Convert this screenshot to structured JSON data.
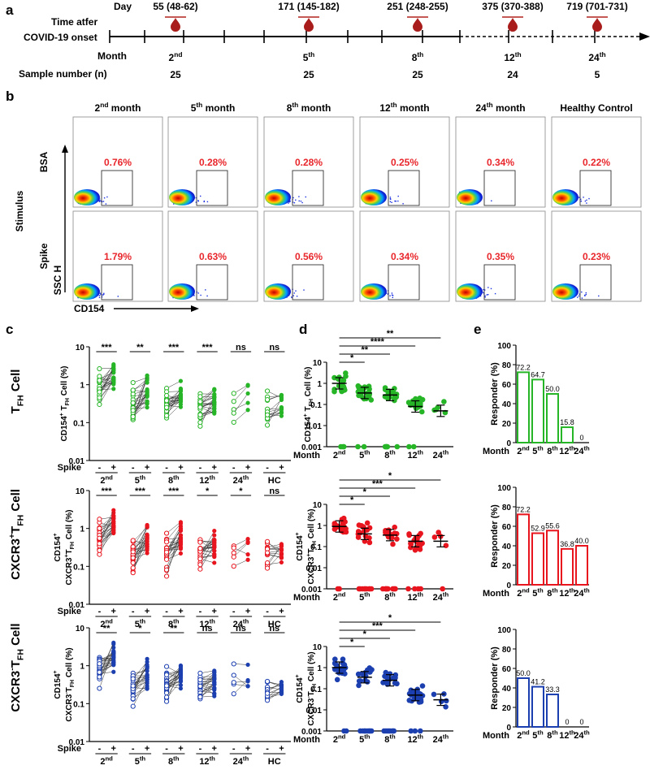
{
  "panel_labels": {
    "a": "a",
    "b": "b",
    "c": "c",
    "d": "d",
    "e": "e"
  },
  "timeline": {
    "day_label": "Day",
    "onset_label_1": "Time atfer",
    "onset_label_2": "COVID-19 onset",
    "month_label": "Month",
    "sample_label": "Sample number (n)",
    "timepoints": [
      {
        "day": "55 (48-62)",
        "month_num": "2",
        "month_sup": "nd",
        "n": "25"
      },
      {
        "day": "171 (145-182)",
        "month_num": "5",
        "month_sup": "th",
        "n": "25"
      },
      {
        "day": "251 (248-255)",
        "month_num": "8",
        "month_sup": "th",
        "n": "25"
      },
      {
        "day": "375 (370-388)",
        "month_num": "12",
        "month_sup": "th",
        "n": "24"
      },
      {
        "day": "719 (701-731)",
        "month_num": "24",
        "month_sup": "th",
        "n": "5"
      }
    ]
  },
  "flow": {
    "stimulus_label": "Stimulus",
    "row_labels": [
      "BSA",
      "Spike"
    ],
    "y_axis": "SSC H",
    "x_axis": "CD154",
    "columns": [
      {
        "num": "2",
        "sup": "nd",
        "text": " month"
      },
      {
        "num": "5",
        "sup": "th",
        "text": " month"
      },
      {
        "num": "8",
        "sup": "th",
        "text": " month"
      },
      {
        "num": "12",
        "sup": "th",
        "text": " month"
      },
      {
        "num": "24",
        "sup": "th",
        "text": " month"
      },
      {
        "num": "",
        "sup": "",
        "text": "Healthy Control"
      }
    ],
    "percentages": [
      [
        "0.76%",
        "0.28%",
        "0.28%",
        "0.25%",
        "0.34%",
        "0.22%"
      ],
      [
        "1.79%",
        "0.63%",
        "0.56%",
        "0.34%",
        "0.35%",
        "0.23%"
      ]
    ],
    "pct_color": "#e8262b"
  },
  "row_titles": [
    {
      "pre": "T",
      "sub": "FH",
      "sup": "",
      "post": " Cell"
    },
    {
      "pre": "CXCR3",
      "sub": "FH",
      "sup": "+",
      "post": " Cell"
    },
    {
      "pre": "CXCR3",
      "sub": "FH",
      "sup": "-",
      "post": " Cell"
    }
  ],
  "colors": {
    "green": "#26b526",
    "red": "#e8141e",
    "blue": "#1c3fb0"
  },
  "chart_data": [
    {
      "type": "scatter",
      "panel": "c",
      "population": "TFH",
      "ylabel": "CD154+ TFH Cell (%)",
      "ylim": [
        0.01,
        10
      ],
      "yscale": "log",
      "yticks": [
        "0.01",
        "0.1",
        "1",
        "10"
      ],
      "groups": [
        "2nd",
        "5th",
        "8th",
        "12th",
        "24th",
        "HC"
      ],
      "stim_labels": [
        "-",
        "+"
      ],
      "stim_axis": "Spike",
      "significance": [
        "***",
        "**",
        "***",
        "***",
        "ns",
        "ns"
      ],
      "medians_bsa": [
        0.75,
        0.28,
        0.28,
        0.22,
        0.34,
        0.22
      ],
      "medians_spike": [
        1.6,
        0.55,
        0.5,
        0.32,
        0.35,
        0.23
      ]
    },
    {
      "type": "scatter",
      "panel": "c",
      "population": "CXCR3+ TFH",
      "ylabel": "CD154+ CXCR3+ TFH Cell (%)",
      "ylim": [
        0.01,
        10
      ],
      "yscale": "log",
      "yticks": [
        "0.01",
        "0.1",
        "1",
        "10"
      ],
      "groups": [
        "2nd",
        "5th",
        "8th",
        "12th",
        "24th",
        "HC"
      ],
      "stim_labels": [
        "-",
        "+"
      ],
      "stim_axis": "Spike",
      "significance": [
        "***",
        "***",
        "***",
        "*",
        "*",
        "ns"
      ],
      "medians_bsa": [
        0.6,
        0.2,
        0.25,
        0.2,
        0.2,
        0.18
      ],
      "medians_spike": [
        1.2,
        0.45,
        0.55,
        0.3,
        0.35,
        0.2
      ]
    },
    {
      "type": "scatter",
      "panel": "c",
      "population": "CXCR3- TFH",
      "ylabel": "CD154+ CXCR3- TFH Cell (%)",
      "ylim": [
        0.01,
        10
      ],
      "yscale": "log",
      "yticks": [
        "0.01",
        "0.1",
        "1",
        "10"
      ],
      "groups": [
        "2nd",
        "5th",
        "8th",
        "12th",
        "24th",
        "HC"
      ],
      "stim_labels": [
        "-",
        "+"
      ],
      "stim_axis": "Spike",
      "significance": [
        "**",
        "*",
        "**",
        "ns",
        "ns",
        "ns"
      ],
      "medians_bsa": [
        0.8,
        0.3,
        0.3,
        0.28,
        0.4,
        0.25
      ],
      "medians_spike": [
        1.4,
        0.5,
        0.5,
        0.3,
        0.35,
        0.22
      ]
    },
    {
      "type": "scatter",
      "panel": "d",
      "population": "TFH",
      "ylabel": "CD154+ TFH Cell (%)",
      "ylim": [
        0.001,
        10
      ],
      "yscale": "log",
      "yticks": [
        "0.001",
        "0.01",
        "0.1",
        "1",
        "10"
      ],
      "groups": [
        "2nd",
        "5th",
        "8th",
        "12th",
        "24th"
      ],
      "xaxis_label": "Month",
      "means": [
        1.0,
        0.35,
        0.28,
        0.08,
        0.05
      ],
      "comparisons": [
        {
          "from": 0,
          "to": 4,
          "label": "**"
        },
        {
          "from": 0,
          "to": 3,
          "label": "****"
        },
        {
          "from": 0,
          "to": 2,
          "label": "**"
        },
        {
          "from": 0,
          "to": 1,
          "label": "*"
        }
      ]
    },
    {
      "type": "scatter",
      "panel": "d",
      "population": "CXCR3+ TFH",
      "ylabel": "CD154+ CXCR3+ TFH Cell (%)",
      "ylim": [
        0.001,
        10
      ],
      "yscale": "log",
      "yticks": [
        "0.001",
        "0.01",
        "0.1",
        "1",
        "10"
      ],
      "groups": [
        "2nd",
        "5th",
        "8th",
        "12th",
        "24th"
      ],
      "xaxis_label": "Month",
      "means": [
        0.9,
        0.4,
        0.35,
        0.18,
        0.18
      ],
      "comparisons": [
        {
          "from": 0,
          "to": 4,
          "label": "*"
        },
        {
          "from": 0,
          "to": 3,
          "label": "***"
        },
        {
          "from": 0,
          "to": 2,
          "label": "*"
        },
        {
          "from": 0,
          "to": 1,
          "label": "*"
        }
      ]
    },
    {
      "type": "scatter",
      "panel": "d",
      "population": "CXCR3- TFH",
      "ylabel": "CD154+ CXCR3- TFH Cell (%)",
      "ylim": [
        0.001,
        10
      ],
      "yscale": "log",
      "yticks": [
        "0.001",
        "0.01",
        "0.1",
        "1",
        "10"
      ],
      "groups": [
        "2nd",
        "5th",
        "8th",
        "12th",
        "24th"
      ],
      "xaxis_label": "Month",
      "means": [
        1.0,
        0.35,
        0.25,
        0.05,
        0.03
      ],
      "comparisons": [
        {
          "from": 0,
          "to": 4,
          "label": "*"
        },
        {
          "from": 0,
          "to": 3,
          "label": "***"
        },
        {
          "from": 0,
          "to": 2,
          "label": "*"
        },
        {
          "from": 0,
          "to": 1,
          "label": "*"
        }
      ]
    },
    {
      "type": "bar",
      "panel": "e",
      "population": "TFH",
      "ylabel": "Responder (%)",
      "ylim": [
        0,
        100
      ],
      "yticks": [
        "0",
        "20",
        "40",
        "60",
        "80",
        "100"
      ],
      "xaxis_label": "Month",
      "categories": [
        "2nd",
        "5th",
        "8th",
        "12th",
        "24th"
      ],
      "values": [
        72.2,
        64.7,
        50.0,
        15.8,
        0
      ],
      "labels": [
        "72.2",
        "64.7",
        "50.0",
        "15.8",
        "0"
      ]
    },
    {
      "type": "bar",
      "panel": "e",
      "population": "CXCR3+ TFH",
      "ylabel": "Responder (%)",
      "ylim": [
        0,
        100
      ],
      "yticks": [
        "0",
        "20",
        "40",
        "60",
        "80",
        "100"
      ],
      "xaxis_label": "Month",
      "categories": [
        "2nd",
        "5th",
        "8th",
        "12th",
        "24th"
      ],
      "values": [
        72.2,
        52.9,
        55.6,
        36.8,
        40.0
      ],
      "labels": [
        "72.2",
        "52.9",
        "55.6",
        "36.8",
        "40.0"
      ]
    },
    {
      "type": "bar",
      "panel": "e",
      "population": "CXCR3- TFH",
      "ylabel": "Responder (%)",
      "ylim": [
        0,
        100
      ],
      "yticks": [
        "0",
        "20",
        "40",
        "60",
        "80",
        "100"
      ],
      "xaxis_label": "Month",
      "categories": [
        "2nd",
        "5th",
        "8th",
        "12th",
        "24th"
      ],
      "values": [
        50.0,
        41.2,
        33.3,
        0,
        0
      ],
      "labels": [
        "50.0",
        "41.2",
        "33.3",
        "0",
        "0"
      ]
    }
  ]
}
